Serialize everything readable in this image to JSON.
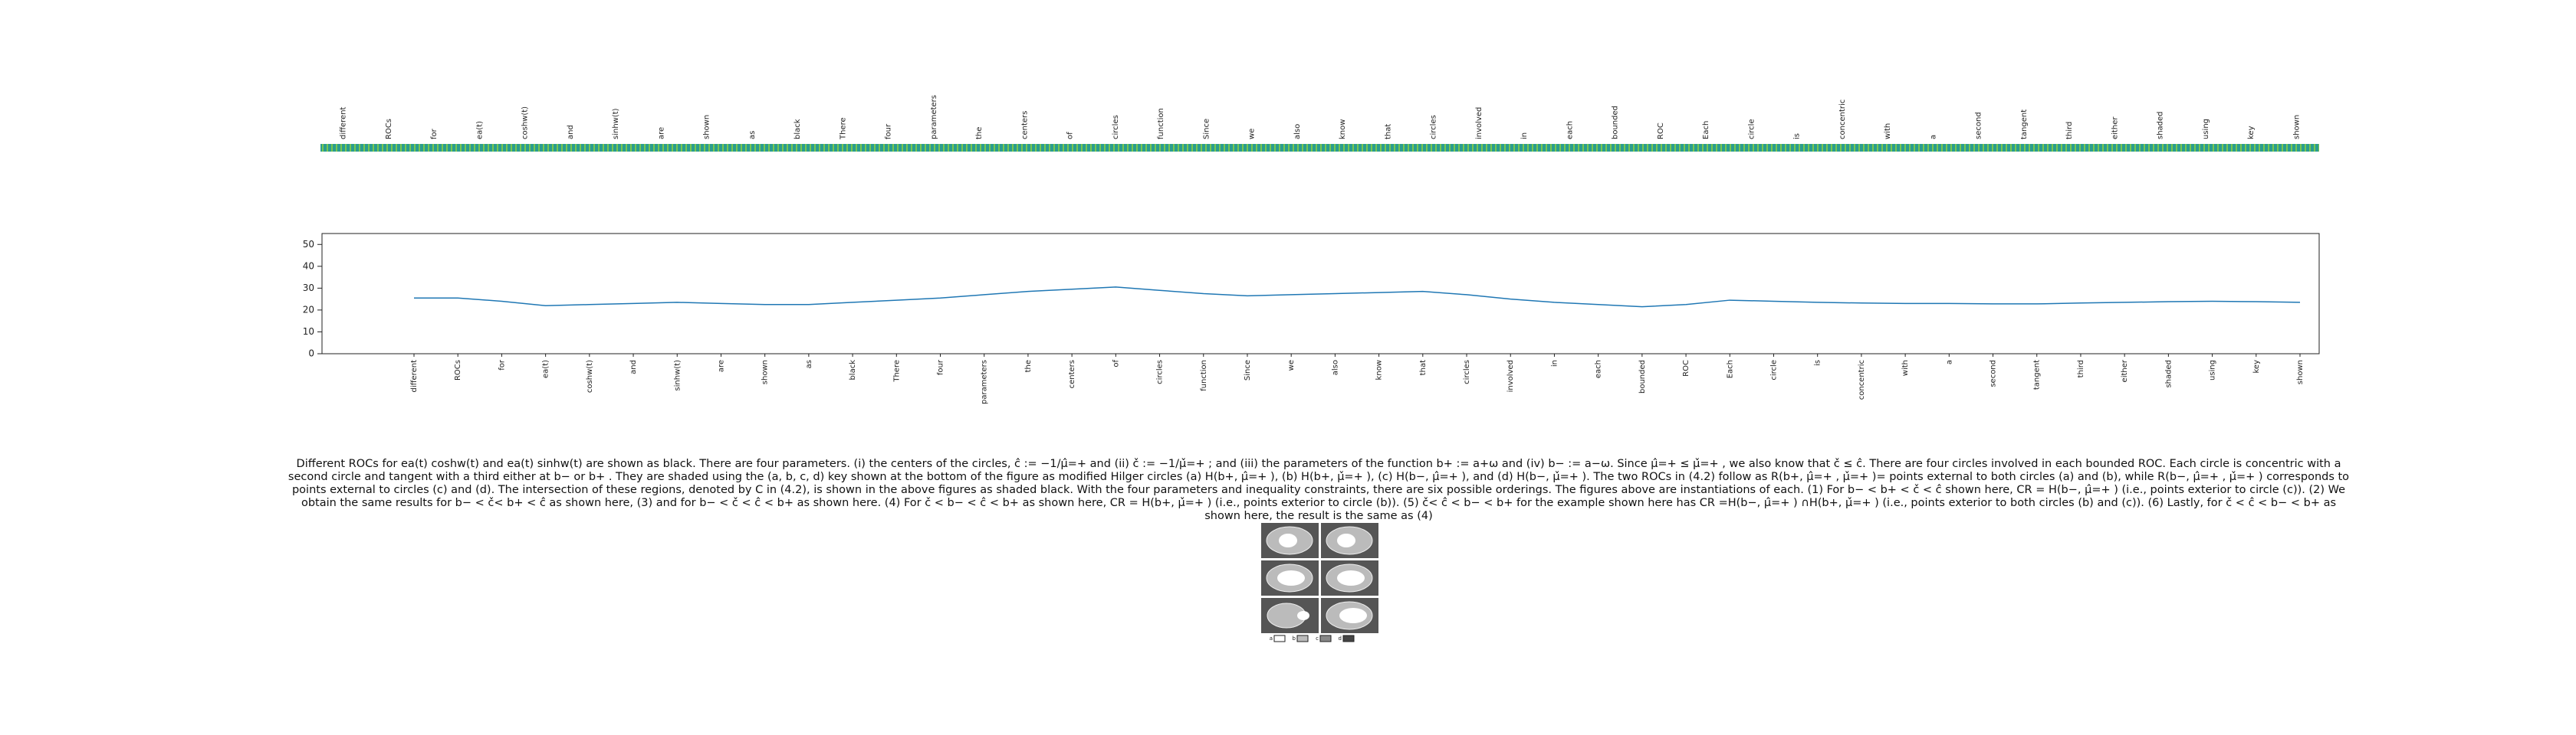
{
  "chart_data": {
    "type": "line",
    "categories": [
      "different",
      "ROCs",
      "for",
      "ea(t)",
      "coshw(t)",
      "and",
      "sinhw(t)",
      "are",
      "shown",
      "as",
      "black",
      "There",
      "four",
      "parameters",
      "the",
      "centers",
      "of",
      "circles",
      "function",
      "Since",
      "we",
      "also",
      "know",
      "that",
      "circles",
      "involved",
      "in",
      "each",
      "bounded",
      "ROC",
      "Each",
      "circle",
      "is",
      "concentric",
      "with",
      "a",
      "second",
      "tangent",
      "third",
      "either",
      "shaded",
      "using",
      "key",
      "shown"
    ],
    "values": [
      25.5,
      25.5,
      24,
      22,
      22.5,
      23,
      23.5,
      23,
      22.5,
      22.5,
      23.5,
      24.5,
      25.5,
      27,
      28.5,
      29.5,
      30.5,
      29,
      27.5,
      26.5,
      27,
      27.5,
      28,
      28.5,
      27,
      25,
      23.5,
      22.5,
      21.5,
      22.5,
      24.5,
      24,
      23.5,
      23.2,
      23,
      23,
      22.8,
      22.8,
      23.2,
      23.5,
      23.8,
      24,
      23.8,
      23.5
    ],
    "color": "#1f77b4",
    "ylim": [
      0,
      55
    ],
    "yticks": [
      0,
      10,
      20,
      30,
      40,
      50
    ]
  },
  "caption": "Different ROCs for ea(t) coshw(t) and ea(t) sinhw(t) are shown as black. There are four parameters. (i) the centers of the circles, ĉ := −1/µ̂=+ and (ii) č := −1/µ̌=+ ; and (iii) the parameters of the function b+ := a+ω and (iv) b− := a−ω. Since µ̂=+ ≤ µ̌=+ , we also know that č ≤ ĉ. There are four circles involved in each bounded ROC. Each circle is concentric with a second circle and tangent with a third either at b− or b+ . They are shaded using the (a, b, c, d) key shown at the bottom of the figure as modified Hilger circles (a) H(b+, µ̂=+ ), (b) H(b+, µ̌=+ ), (c) H(b−, µ̂=+ ), and (d) H(b−, µ̌=+ ). The two ROCs in (4.2) follow as R(b+, µ̂=+ , µ̌=+ )= points external to both circles (a) and (b), while R(b−, µ̂=+ , µ̌=+ ) corresponds to points external to circles (c) and (d). The intersection of these regions, denoted by C in (4.2), is shown in the above figures as shaded black. With the four parameters and inequality constraints, there are six possible orderings. The figures above are instantiations of each. (1) For b− < b+ < č < ĉ shown here, CR = H(b−, µ̂=+ ) (i.e., points exterior to circle (c)). (2) We obtain the same results for b− < č< b+ < ĉ as shown here, (3) and for b− < č < ĉ < b+ as shown here. (4) For č < b− < ĉ < b+ as shown here, CR = H(b+, µ̌=+ ) (i.e., points exterior to circle (b)). (5) č< ĉ < b− < b+ for the example shown here has CR =H(b−, µ̂=+ ) ∩H(b+, µ̌=+ ) (i.e., points exterior to both circles (b) and (c)). (6) Lastly, for č < ĉ < b− < b+ as shown here, the result is the same as (4)",
  "legend": [
    "a",
    "b",
    "c",
    "d"
  ]
}
